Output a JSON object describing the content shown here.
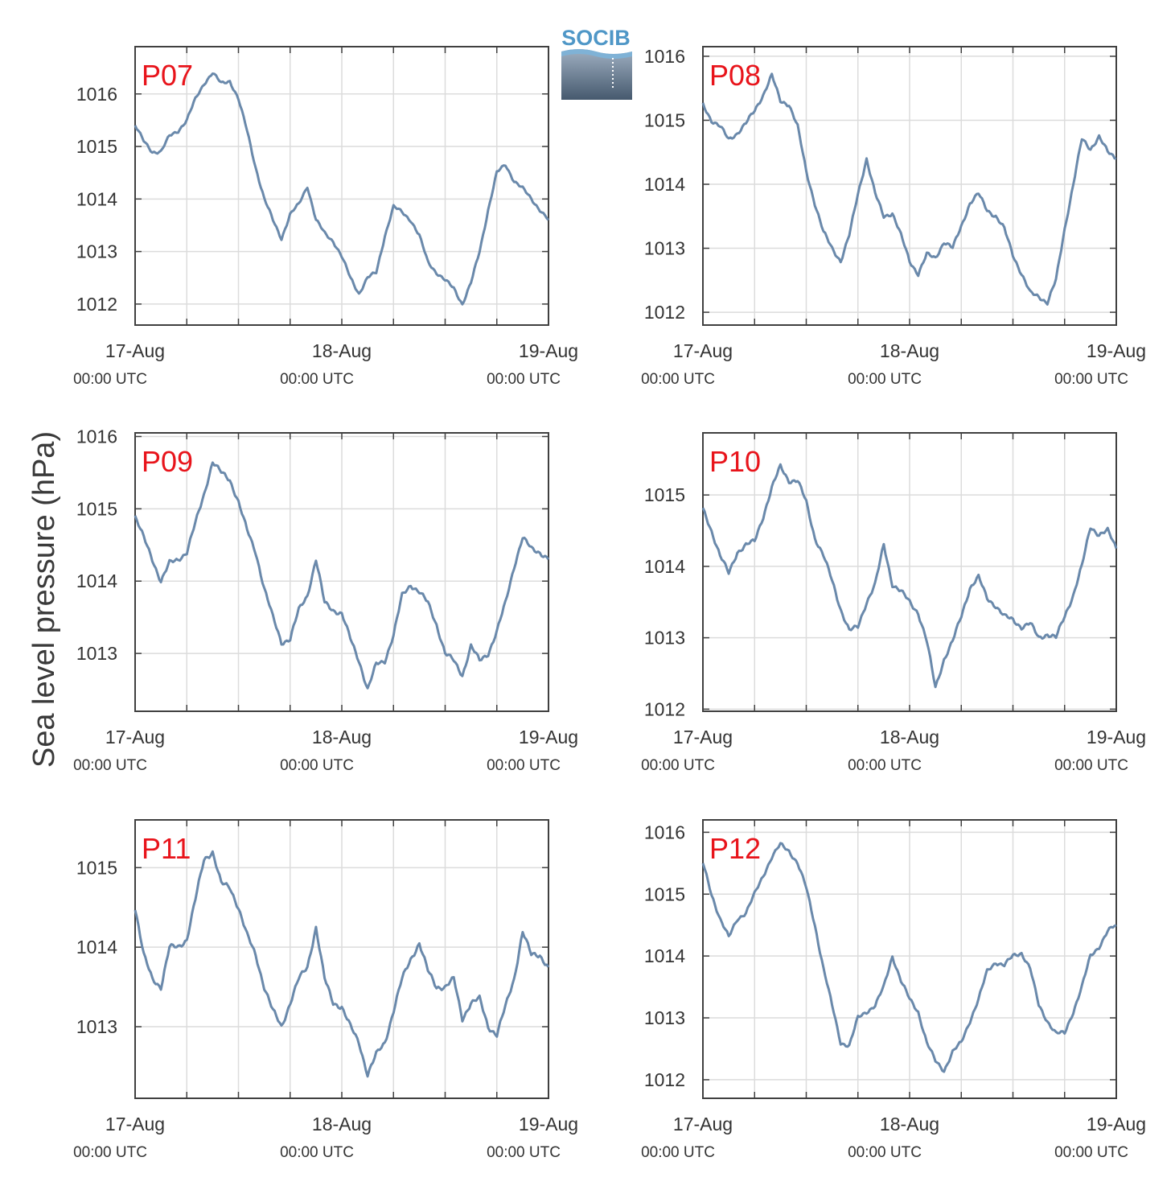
{
  "figure": {
    "ylabel": "Sea level pressure (hPa)",
    "logo_text": "SOCIB",
    "colors": {
      "line": "#6a89ab",
      "label": "#e8141b",
      "grid": "#dcdcdc",
      "axes": "#404040"
    }
  },
  "chart_data": [
    {
      "type": "line",
      "title": "P07",
      "xlim": [
        "17-Aug 00:00 UTC",
        "19-Aug 00:00 UTC"
      ],
      "xticks": [
        {
          "label": "17-Aug",
          "sublabel": "00:00 UTC"
        },
        {
          "label": "18-Aug",
          "sublabel": "00:00 UTC"
        },
        {
          "label": "19-Aug",
          "sublabel": "00:00 UTC"
        }
      ],
      "ylim": [
        1011.6,
        1016.9
      ],
      "yticks": [
        1012,
        1013,
        1014,
        1015,
        1016
      ],
      "noise": 0,
      "series": [
        {
          "x_hours": [
            0,
            1,
            2,
            3,
            4,
            5,
            6,
            7,
            8,
            9,
            10,
            11,
            12,
            13,
            14,
            15,
            16,
            17,
            18,
            19,
            20,
            21,
            22,
            23,
            24,
            25,
            26,
            27,
            28,
            29,
            30,
            31,
            32,
            33,
            34,
            35,
            36,
            37,
            38,
            39,
            40,
            41,
            42,
            43,
            44,
            45,
            46,
            47,
            48
          ],
          "values": [
            1015.4,
            1015.1,
            1014.9,
            1014.9,
            1015.2,
            1015.3,
            1015.5,
            1015.9,
            1016.2,
            1016.4,
            1016.2,
            1016.25,
            1015.9,
            1015.3,
            1014.6,
            1014.0,
            1013.6,
            1013.25,
            1013.7,
            1013.9,
            1014.25,
            1013.6,
            1013.35,
            1013.2,
            1012.9,
            1012.5,
            1012.2,
            1012.5,
            1012.6,
            1013.3,
            1013.85,
            1013.75,
            1013.6,
            1013.3,
            1012.8,
            1012.6,
            1012.45,
            1012.3,
            1012.0,
            1012.4,
            1013.0,
            1013.8,
            1014.5,
            1014.65,
            1014.35,
            1014.2,
            1014.0,
            1013.8,
            1013.6
          ]
        }
      ]
    },
    {
      "type": "line",
      "title": "P08",
      "xlim": [
        "17-Aug 00:00 UTC",
        "19-Aug 00:00 UTC"
      ],
      "xticks": [
        {
          "label": "17-Aug",
          "sublabel": "00:00 UTC"
        },
        {
          "label": "18-Aug",
          "sublabel": "00:00 UTC"
        },
        {
          "label": "19-Aug",
          "sublabel": "00:00 UTC"
        }
      ],
      "ylim": [
        1011.8,
        1016.15
      ],
      "yticks": [
        1012,
        1013,
        1014,
        1015,
        1016
      ],
      "noise": 0,
      "series": [
        {
          "x_hours": [
            0,
            1,
            2,
            3,
            4,
            5,
            6,
            7,
            8,
            9,
            10,
            11,
            12,
            13,
            14,
            15,
            16,
            17,
            18,
            19,
            20,
            21,
            22,
            23,
            24,
            25,
            26,
            27,
            28,
            29,
            30,
            31,
            32,
            33,
            34,
            35,
            36,
            37,
            38,
            39,
            40,
            41,
            42,
            43,
            44,
            45,
            46,
            47,
            48
          ],
          "values": [
            1015.25,
            1015.0,
            1014.9,
            1014.7,
            1014.8,
            1014.95,
            1015.15,
            1015.4,
            1015.7,
            1015.3,
            1015.25,
            1014.9,
            1014.2,
            1013.7,
            1013.25,
            1013.0,
            1012.8,
            1013.2,
            1013.85,
            1014.4,
            1013.85,
            1013.5,
            1013.55,
            1013.2,
            1012.8,
            1012.6,
            1012.9,
            1012.85,
            1013.1,
            1013.0,
            1013.35,
            1013.7,
            1013.85,
            1013.6,
            1013.5,
            1013.3,
            1012.9,
            1012.6,
            1012.3,
            1012.25,
            1012.15,
            1012.5,
            1013.3,
            1014.0,
            1014.7,
            1014.55,
            1014.75,
            1014.5,
            1014.4
          ]
        }
      ]
    },
    {
      "type": "line",
      "title": "P09",
      "xlim": [
        "17-Aug 00:00 UTC",
        "19-Aug 00:00 UTC"
      ],
      "xticks": [
        {
          "label": "17-Aug",
          "sublabel": "00:00 UTC"
        },
        {
          "label": "18-Aug",
          "sublabel": "00:00 UTC"
        },
        {
          "label": "19-Aug",
          "sublabel": "00:00 UTC"
        }
      ],
      "ylim": [
        1012.2,
        1016.05
      ],
      "yticks": [
        1013,
        1014,
        1015,
        1016
      ],
      "noise": 0,
      "series": [
        {
          "x_hours": [
            0,
            1,
            2,
            3,
            4,
            5,
            6,
            7,
            8,
            9,
            10,
            11,
            12,
            13,
            14,
            15,
            16,
            17,
            18,
            19,
            20,
            21,
            22,
            23,
            24,
            25,
            26,
            27,
            28,
            29,
            30,
            31,
            32,
            33,
            34,
            35,
            36,
            37,
            38,
            39,
            40,
            41,
            42,
            43,
            44,
            45,
            46,
            47,
            48
          ],
          "values": [
            1014.9,
            1014.6,
            1014.3,
            1014.0,
            1014.25,
            1014.3,
            1014.4,
            1014.8,
            1015.2,
            1015.65,
            1015.5,
            1015.4,
            1015.1,
            1014.7,
            1014.4,
            1013.9,
            1013.5,
            1013.15,
            1013.2,
            1013.6,
            1013.8,
            1014.3,
            1013.7,
            1013.6,
            1013.55,
            1013.2,
            1012.9,
            1012.5,
            1012.85,
            1012.9,
            1013.25,
            1013.8,
            1013.95,
            1013.85,
            1013.7,
            1013.4,
            1013.0,
            1012.9,
            1012.7,
            1013.1,
            1012.9,
            1013.0,
            1013.3,
            1013.7,
            1014.2,
            1014.6,
            1014.45,
            1014.4,
            1014.3
          ]
        }
      ]
    },
    {
      "type": "line",
      "title": "P10",
      "xlim": [
        "17-Aug 00:00 UTC",
        "19-Aug 00:00 UTC"
      ],
      "xticks": [
        {
          "label": "17-Aug",
          "sublabel": "00:00 UTC"
        },
        {
          "label": "18-Aug",
          "sublabel": "00:00 UTC"
        },
        {
          "label": "19-Aug",
          "sublabel": "00:00 UTC"
        }
      ],
      "ylim": [
        1011.97,
        1015.87
      ],
      "yticks": [
        1012,
        1013,
        1014,
        1015
      ],
      "noise": 0,
      "series": [
        {
          "x_hours": [
            0,
            1,
            2,
            3,
            4,
            5,
            6,
            7,
            8,
            9,
            10,
            11,
            12,
            13,
            14,
            15,
            16,
            17,
            18,
            19,
            20,
            21,
            22,
            23,
            24,
            25,
            26,
            27,
            28,
            29,
            30,
            31,
            32,
            33,
            34,
            35,
            36,
            37,
            38,
            39,
            40,
            41,
            42,
            43,
            44,
            45,
            46,
            47,
            48
          ],
          "values": [
            1014.8,
            1014.5,
            1014.15,
            1013.9,
            1014.2,
            1014.3,
            1014.35,
            1014.7,
            1015.1,
            1015.4,
            1015.2,
            1015.2,
            1014.9,
            1014.4,
            1014.15,
            1013.8,
            1013.4,
            1013.1,
            1013.15,
            1013.5,
            1013.75,
            1014.3,
            1013.75,
            1013.65,
            1013.5,
            1013.35,
            1012.95,
            1012.3,
            1012.7,
            1012.95,
            1013.3,
            1013.7,
            1013.85,
            1013.55,
            1013.45,
            1013.3,
            1013.25,
            1013.15,
            1013.2,
            1013.0,
            1013.05,
            1013.0,
            1013.3,
            1013.6,
            1014.0,
            1014.55,
            1014.45,
            1014.5,
            1014.25
          ]
        }
      ]
    },
    {
      "type": "line",
      "title": "P11",
      "xlim": [
        "17-Aug 00:00 UTC",
        "19-Aug 00:00 UTC"
      ],
      "xticks": [
        {
          "label": "17-Aug",
          "sublabel": "00:00 UTC"
        },
        {
          "label": "18-Aug",
          "sublabel": "00:00 UTC"
        },
        {
          "label": "19-Aug",
          "sublabel": "00:00 UTC"
        }
      ],
      "ylim": [
        1012.1,
        1015.6
      ],
      "yticks": [
        1013,
        1014,
        1015
      ],
      "noise": 0,
      "series": [
        {
          "x_hours": [
            0,
            1,
            2,
            3,
            4,
            5,
            6,
            7,
            8,
            9,
            10,
            11,
            12,
            13,
            14,
            15,
            16,
            17,
            18,
            19,
            20,
            21,
            22,
            23,
            24,
            25,
            26,
            27,
            28,
            29,
            30,
            31,
            32,
            33,
            34,
            35,
            36,
            37,
            38,
            39,
            40,
            41,
            42,
            43,
            44,
            45,
            46,
            47,
            48
          ],
          "values": [
            1014.5,
            1013.9,
            1013.6,
            1013.5,
            1014.0,
            1014.0,
            1014.1,
            1014.6,
            1015.1,
            1015.2,
            1014.8,
            1014.75,
            1014.5,
            1014.15,
            1013.9,
            1013.5,
            1013.2,
            1013.0,
            1013.3,
            1013.6,
            1013.75,
            1014.25,
            1013.6,
            1013.3,
            1013.25,
            1013.0,
            1012.8,
            1012.4,
            1012.65,
            1012.8,
            1013.2,
            1013.6,
            1013.85,
            1014.05,
            1013.7,
            1013.5,
            1013.5,
            1013.6,
            1013.1,
            1013.3,
            1013.35,
            1013.0,
            1012.9,
            1013.25,
            1013.6,
            1014.2,
            1013.9,
            1013.9,
            1013.75
          ]
        }
      ]
    },
    {
      "type": "line",
      "title": "P12",
      "xlim": [
        "17-Aug 00:00 UTC",
        "19-Aug 00:00 UTC"
      ],
      "xticks": [
        {
          "label": "17-Aug",
          "sublabel": "00:00 UTC"
        },
        {
          "label": "18-Aug",
          "sublabel": "00:00 UTC"
        },
        {
          "label": "19-Aug",
          "sublabel": "00:00 UTC"
        }
      ],
      "ylim": [
        1011.7,
        1016.2
      ],
      "yticks": [
        1012,
        1013,
        1014,
        1015,
        1016
      ],
      "noise": 0,
      "series": [
        {
          "x_hours": [
            0,
            1,
            2,
            3,
            4,
            5,
            6,
            7,
            8,
            9,
            10,
            11,
            12,
            13,
            14,
            15,
            16,
            17,
            18,
            19,
            20,
            21,
            22,
            23,
            24,
            25,
            26,
            27,
            28,
            29,
            30,
            31,
            32,
            33,
            34,
            35,
            36,
            37,
            38,
            39,
            40,
            41,
            42,
            43,
            44,
            45,
            46,
            47,
            48
          ],
          "values": [
            1015.5,
            1015.0,
            1014.6,
            1014.3,
            1014.6,
            1014.7,
            1015.0,
            1015.3,
            1015.6,
            1015.8,
            1015.7,
            1015.5,
            1015.1,
            1014.5,
            1013.8,
            1013.2,
            1012.6,
            1012.55,
            1013.0,
            1013.1,
            1013.2,
            1013.5,
            1014.0,
            1013.6,
            1013.3,
            1013.1,
            1012.6,
            1012.3,
            1012.15,
            1012.45,
            1012.6,
            1012.95,
            1013.3,
            1013.75,
            1013.9,
            1013.85,
            1014.0,
            1014.05,
            1013.8,
            1013.2,
            1012.95,
            1012.75,
            1012.75,
            1013.1,
            1013.5,
            1014.0,
            1014.15,
            1014.4,
            1014.5
          ]
        }
      ]
    }
  ]
}
